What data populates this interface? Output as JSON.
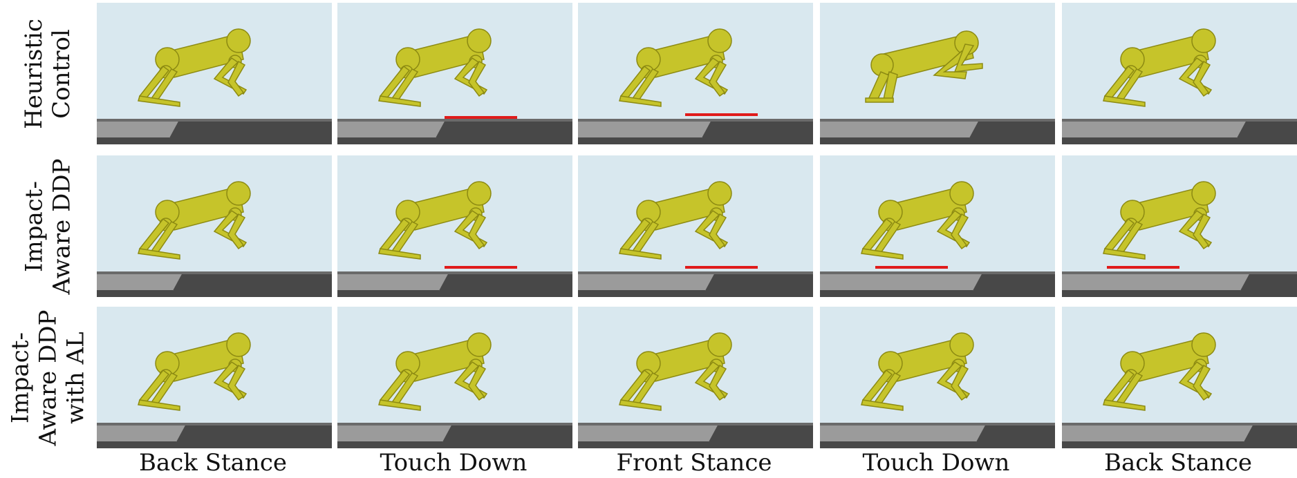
{
  "row_labels": [
    {
      "line1": "Heuristic",
      "line2": "Control"
    },
    {
      "line1": "Impact-",
      "line2": "Aware DDP"
    },
    {
      "line1": "Impact-",
      "line2": "Aware DDP",
      "line3": "with AL"
    }
  ],
  "column_labels": [
    "Back Stance",
    "Touch Down",
    "Front Stance",
    "Touch Down",
    "Back Stance"
  ],
  "colors": {
    "sky": "#d9e8ef",
    "robot": "#c6c42a",
    "robot_edge": "#8c8a12",
    "ground_light": "#9b9b9b",
    "ground_dark": "#484848",
    "impact_marker": "#e01b1b"
  },
  "impact_markers": [
    [
      false,
      true,
      true,
      false,
      false
    ],
    [
      false,
      true,
      true,
      true,
      true
    ],
    [
      false,
      false,
      false,
      false,
      false
    ]
  ]
}
